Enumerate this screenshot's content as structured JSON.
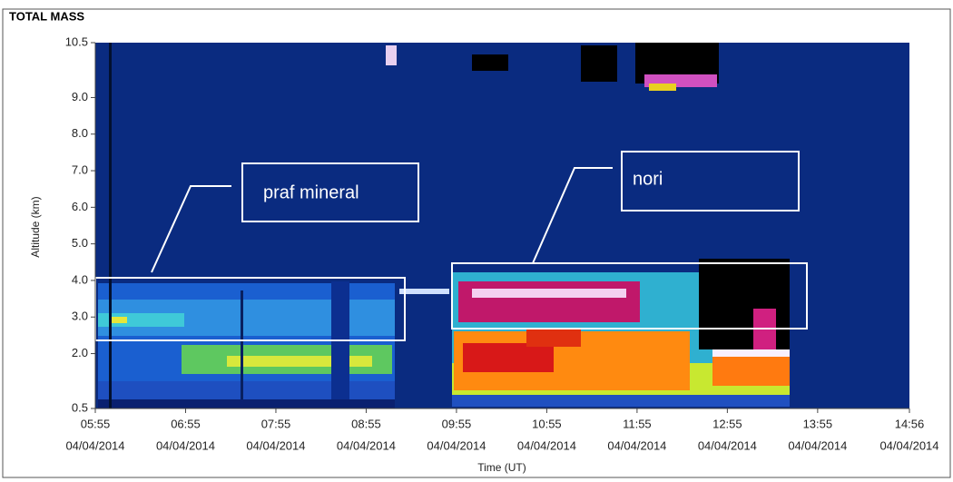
{
  "chart_data": {
    "type": "heatmap",
    "title": "TOTAL MASS",
    "y_label": "Altitude (km)",
    "x_label": "Time (UT)",
    "ylim": [
      0.5,
      10.5
    ],
    "yticks": [
      0.5,
      {
        "value": 2,
        "label": "2.0"
      },
      {
        "value": 3,
        "label": "3.0"
      },
      {
        "value": 4,
        "label": "4.0"
      },
      {
        "value": 5,
        "label": "5.0"
      },
      {
        "value": 6,
        "label": "6.0"
      },
      {
        "value": 7,
        "label": "7.0"
      },
      {
        "value": 8,
        "label": "8.0"
      },
      {
        "value": 9,
        "label": "9.0"
      },
      10.5
    ],
    "xlim": [
      "05:55",
      "14:56"
    ],
    "xticks": [
      {
        "time": "05:55",
        "date": "04/04/2014"
      },
      {
        "time": "06:55",
        "date": "04/04/2014"
      },
      {
        "time": "07:55",
        "date": "04/04/2014"
      },
      {
        "time": "08:55",
        "date": "04/04/2014"
      },
      {
        "time": "09:55",
        "date": "04/04/2014"
      },
      {
        "time": "10:55",
        "date": "04/04/2014"
      },
      {
        "time": "11:55",
        "date": "04/04/2014"
      },
      {
        "time": "12:55",
        "date": "04/04/2014"
      },
      {
        "time": "13:55",
        "date": "04/04/2014"
      },
      {
        "time": "14:56",
        "date": "04/04/2014"
      }
    ],
    "annotations": [
      "praf mineral",
      "nori"
    ]
  }
}
